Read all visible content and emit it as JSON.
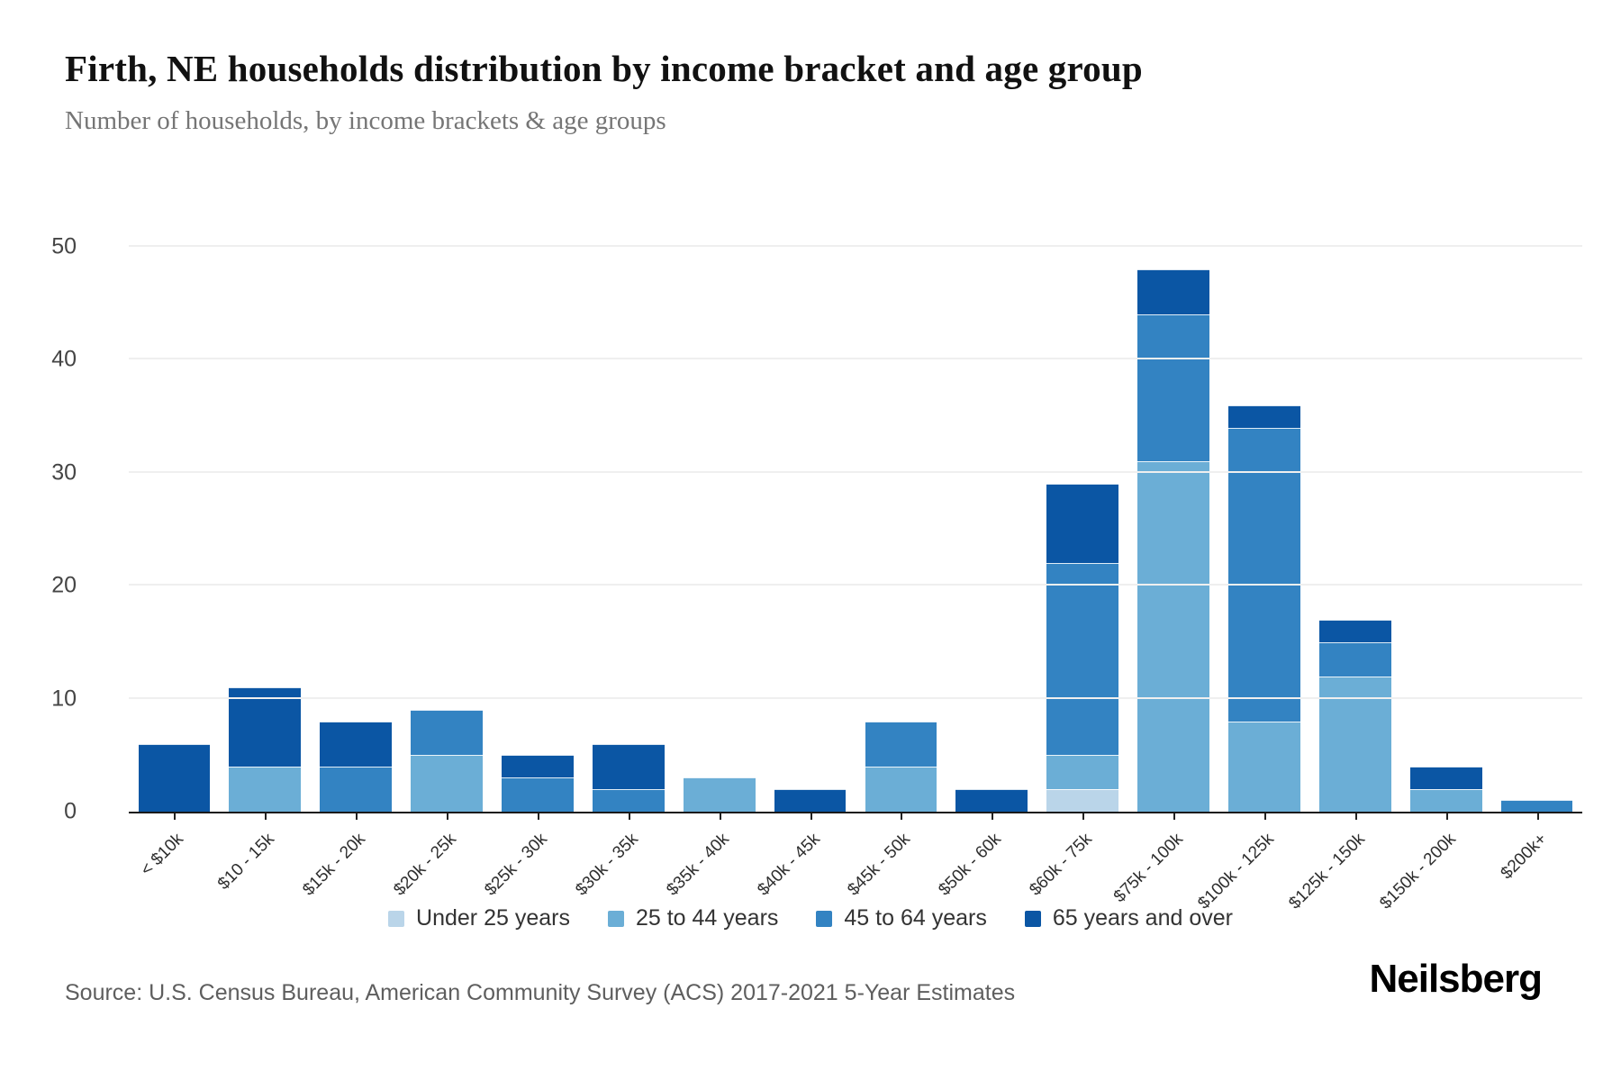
{
  "page": {
    "title": "Firth, NE households distribution by income bracket and age group",
    "subtitle": "Number of households, by income brackets & age groups",
    "source": "Source: U.S. Census Bureau, American Community Survey (ACS) 2017-2021 5-Year Estimates",
    "brand": "Neilsberg"
  },
  "colors": {
    "under_25": "#bad5e9",
    "age_25_44": "#6baed6",
    "age_45_64": "#3383c2",
    "age_65_over": "#0b56a4",
    "gridline": "#efefef",
    "axis": "#1a1a1a"
  },
  "chart_data": {
    "type": "bar",
    "stacked": true,
    "title": "Firth, NE households distribution by income bracket and age group",
    "subtitle": "Number of households, by income brackets & age groups",
    "xlabel": "",
    "ylabel": "Number of households",
    "ylim": [
      0,
      50
    ],
    "yticks": [
      0,
      10,
      20,
      30,
      40,
      50
    ],
    "grid": true,
    "legend_position": "bottom",
    "categories": [
      "< $10k",
      "$10 - 15k",
      "$15k - 20k",
      "$20k - 25k",
      "$25k - 30k",
      "$30k - 35k",
      "$35k - 40k",
      "$40k - 45k",
      "$45k - 50k",
      "$50k - 60k",
      "$60k - 75k",
      "$75k - 100k",
      "$100k - 125k",
      "$125k - 150k",
      "$150k - 200k",
      "$200k+"
    ],
    "series": [
      {
        "name": "Under 25 years",
        "color": "#bad5e9",
        "values": [
          0,
          0,
          0,
          0,
          0,
          0,
          0,
          0,
          0,
          0,
          2,
          0,
          0,
          0,
          0,
          0
        ]
      },
      {
        "name": "25 to 44 years",
        "color": "#6baed6",
        "values": [
          0,
          4,
          0,
          5,
          0,
          0,
          3,
          0,
          4,
          0,
          3,
          31,
          8,
          12,
          2,
          0
        ]
      },
      {
        "name": "45 to 64 years",
        "color": "#3383c2",
        "values": [
          0,
          0,
          4,
          4,
          3,
          2,
          0,
          0,
          4,
          0,
          17,
          13,
          26,
          3,
          0,
          1
        ]
      },
      {
        "name": "65 years and over",
        "color": "#0b56a4",
        "values": [
          6,
          7,
          4,
          0,
          2,
          4,
          0,
          2,
          0,
          2,
          7,
          4,
          2,
          2,
          2,
          0
        ]
      }
    ],
    "totals": [
      6,
      11,
      8,
      9,
      5,
      6,
      3,
      2,
      8,
      2,
      29,
      48,
      36,
      17,
      4,
      1
    ]
  }
}
